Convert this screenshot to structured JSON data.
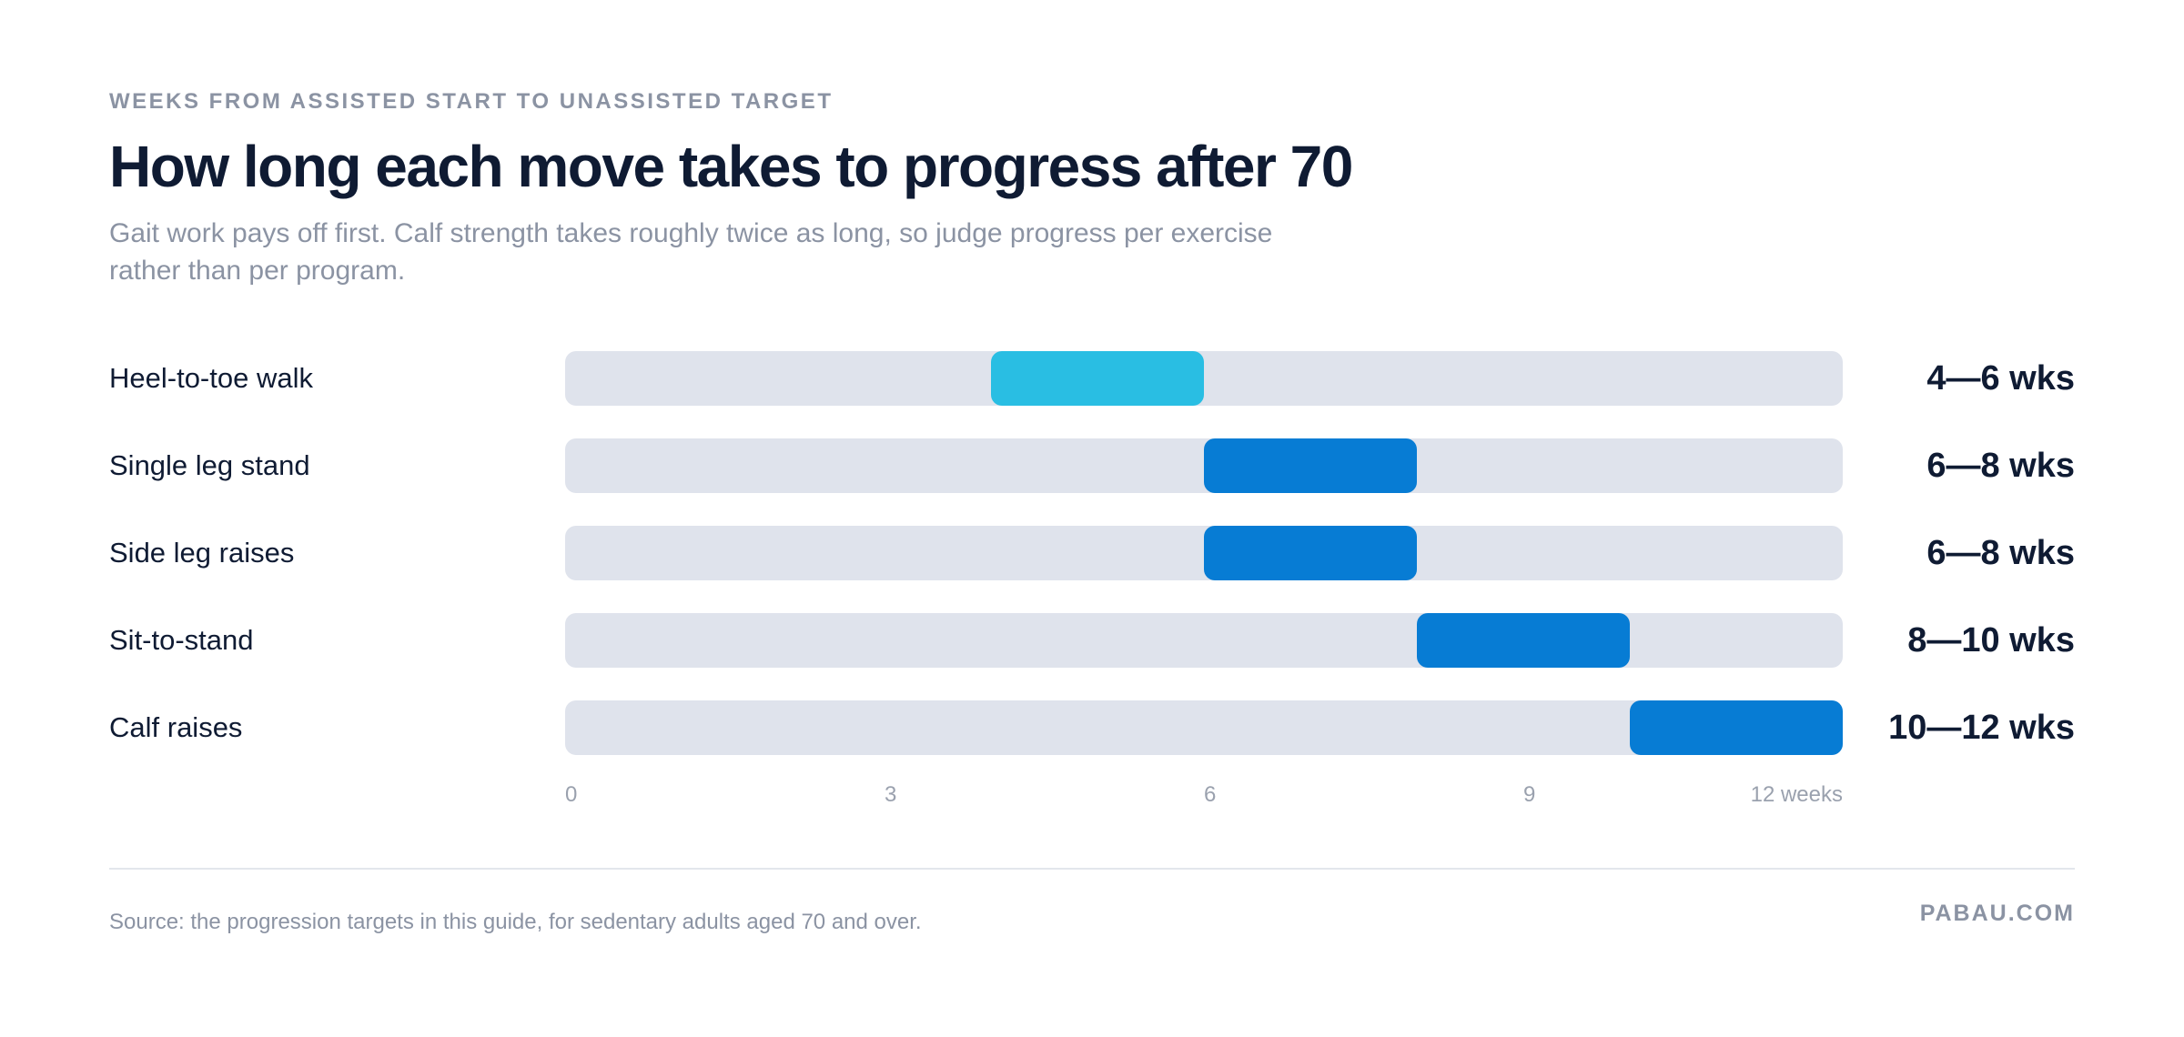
{
  "header": {
    "eyebrow": "WEEKS FROM ASSISTED START TO UNASSISTED TARGET",
    "title": "How long each move takes to progress after 70",
    "subtitle": "Gait work pays off first. Calf strength takes roughly twice as long, so judge progress per exercise rather than per program."
  },
  "chart_data": {
    "type": "bar",
    "orientation": "horizontal",
    "subtype": "range",
    "title": "How long each move takes to progress after 70",
    "xlabel": "weeks",
    "xlim": [
      0,
      12
    ],
    "x_ticks": [
      "0",
      "3",
      "6",
      "9",
      "12 weeks"
    ],
    "x_tick_values": [
      0,
      3,
      6,
      9,
      12
    ],
    "grid": false,
    "categories": [
      "Heel-to-toe walk",
      "Single leg stand",
      "Side leg raises",
      "Sit-to-stand",
      "Calf raises"
    ],
    "ranges": [
      [
        4,
        6
      ],
      [
        6,
        8
      ],
      [
        6,
        8
      ],
      [
        8,
        10
      ],
      [
        10,
        12
      ]
    ],
    "range_labels": [
      "4—6 wks",
      "6—8 wks",
      "6—8 wks",
      "8—10 wks",
      "10—12 wks"
    ],
    "bar_colors": [
      "#29bee3",
      "#077cd4",
      "#077cd4",
      "#077cd4",
      "#077cd4"
    ],
    "track_color": "#dfe3ec"
  },
  "footer": {
    "source": "Source: the progression targets in this guide, for sedentary adults aged 70 and over.",
    "brand": "PABAU.COM"
  }
}
